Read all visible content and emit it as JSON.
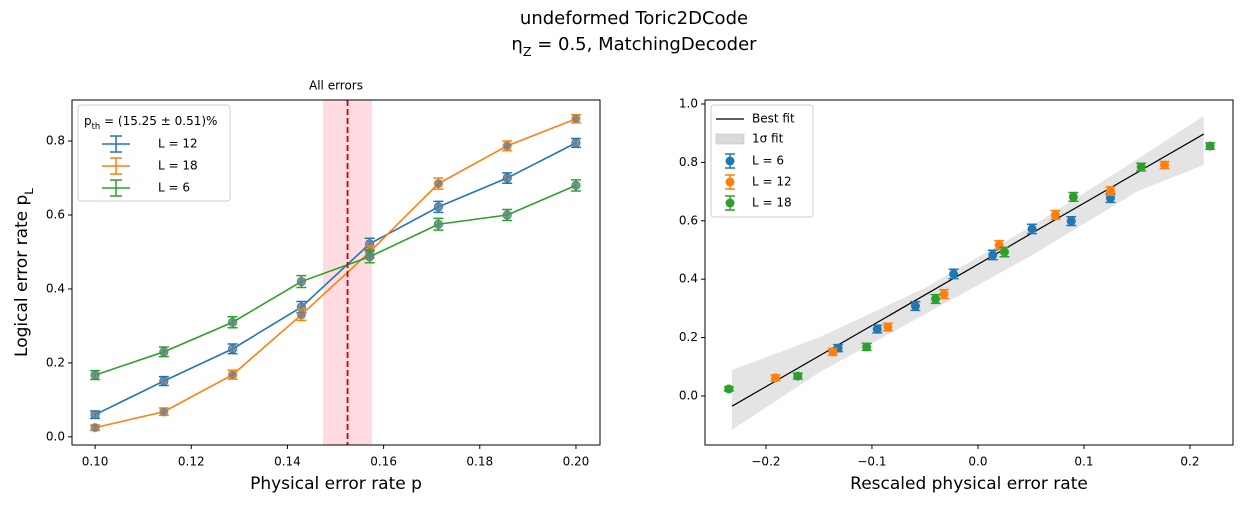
{
  "title": "undeformed Toric2DCode",
  "subtitle": {
    "text": "η",
    "sub": "Z",
    "after": " = 0.5, MatchingDecoder"
  },
  "chart_data": [
    {
      "type": "line",
      "title": "All errors",
      "x_label": "Physical error rate p",
      "y_label": {
        "text": "Logical error rate p",
        "sub": "L",
        "after": ""
      },
      "legend_title": {
        "text": "p",
        "sub": "th",
        "after": " = (15.25 ± 0.51)%"
      },
      "legend_position": "upper left",
      "x": [
        0.1,
        0.1143,
        0.1286,
        0.1429,
        0.1571,
        0.1714,
        0.1857,
        0.2
      ],
      "series": [
        {
          "name": "L = 12",
          "color": "#1f77b4",
          "values": [
            0.06,
            0.151,
            0.238,
            0.351,
            0.522,
            0.622,
            0.7,
            0.795
          ],
          "errors": [
            0.01,
            0.012,
            0.013,
            0.015,
            0.015,
            0.015,
            0.014,
            0.012
          ]
        },
        {
          "name": "L = 18",
          "color": "#ff7f0e",
          "values": [
            0.025,
            0.068,
            0.168,
            0.33,
            0.5,
            0.685,
            0.787,
            0.86
          ],
          "errors": [
            0.007,
            0.01,
            0.012,
            0.015,
            0.016,
            0.015,
            0.013,
            0.011
          ]
        },
        {
          "name": "L = 6",
          "color": "#2ca02c",
          "values": [
            0.167,
            0.23,
            0.31,
            0.42,
            0.487,
            0.575,
            0.6,
            0.68
          ],
          "errors": [
            0.012,
            0.013,
            0.015,
            0.016,
            0.016,
            0.016,
            0.015,
            0.015
          ]
        }
      ],
      "threshold": 0.1525,
      "threshold_band": [
        0.1474,
        0.1576
      ],
      "threshold_color": "#cc0000",
      "band_color": "#ffc0cb",
      "xlim": [
        0.0952,
        0.205
      ],
      "ylim": [
        -0.022,
        0.911
      ],
      "xticks": [
        {
          "value": 0.1,
          "label": "0.10"
        },
        {
          "value": 0.12,
          "label": "0.12"
        },
        {
          "value": 0.14,
          "label": "0.14"
        },
        {
          "value": 0.16,
          "label": "0.16"
        },
        {
          "value": 0.18,
          "label": "0.18"
        },
        {
          "value": 0.2,
          "label": "0.20"
        }
      ],
      "yticks": [
        {
          "value": 0,
          "label": "0.0"
        },
        0.2,
        0.4,
        0.6,
        0.8
      ]
    },
    {
      "type": "scatter",
      "x_label": "Rescaled physical error rate",
      "legend_position": "upper left",
      "fit": {
        "name": "Best fit",
        "color": "#000000",
        "x": [
          -0.232,
          0.213
        ],
        "values": [
          -0.035,
          0.897
        ]
      },
      "band": {
        "name": "1σ fit",
        "color": "#d9d9d9",
        "x": [
          -0.232,
          -0.15,
          -0.05,
          0.05,
          0.15,
          0.213
        ],
        "upper": [
          0.089,
          0.2,
          0.37,
          0.58,
          0.81,
          0.959
        ],
        "lower": [
          -0.116,
          0.08,
          0.28,
          0.48,
          0.7,
          0.791
        ]
      },
      "series": [
        {
          "name": "L = 6",
          "color": "#1f77b4",
          "x": [
            -0.132,
            -0.095,
            -0.059,
            -0.023,
            0.014,
            0.051,
            0.088,
            0.125
          ],
          "values": [
            0.164,
            0.229,
            0.308,
            0.418,
            0.483,
            0.572,
            0.599,
            0.678
          ],
          "errors": [
            0.012,
            0.013,
            0.015,
            0.016,
            0.016,
            0.016,
            0.015,
            0.015
          ]
        },
        {
          "name": "L = 12",
          "color": "#ff7f0e",
          "x": [
            -0.191,
            -0.137,
            -0.085,
            -0.032,
            0.02,
            0.073,
            0.125,
            0.176
          ],
          "values": [
            0.062,
            0.151,
            0.236,
            0.349,
            0.517,
            0.62,
            0.702,
            0.791
          ],
          "errors": [
            0.01,
            0.012,
            0.013,
            0.015,
            0.015,
            0.015,
            0.014,
            0.012
          ]
        },
        {
          "name": "L = 18",
          "color": "#2ca02c",
          "x": [
            -0.235,
            -0.17,
            -0.105,
            -0.04,
            0.025,
            0.09,
            0.154,
            0.219
          ],
          "values": [
            0.024,
            0.068,
            0.168,
            0.332,
            0.493,
            0.682,
            0.784,
            0.856
          ],
          "errors": [
            0.007,
            0.01,
            0.012,
            0.015,
            0.016,
            0.015,
            0.013,
            0.011
          ]
        }
      ],
      "xlim": [
        -0.2575,
        0.2406
      ],
      "ylim": [
        -0.168,
        1.0137
      ],
      "xticks": [
        {
          "value": -0.2,
          "label": "−0.2"
        },
        {
          "value": -0.1,
          "label": "−0.1"
        },
        {
          "value": 0,
          "label": "0.0"
        },
        0.1,
        0.2
      ],
      "yticks": [
        {
          "value": 0,
          "label": "0.0"
        },
        0.2,
        0.4,
        0.6,
        0.8,
        {
          "value": 1,
          "label": "1.0"
        }
      ]
    }
  ]
}
